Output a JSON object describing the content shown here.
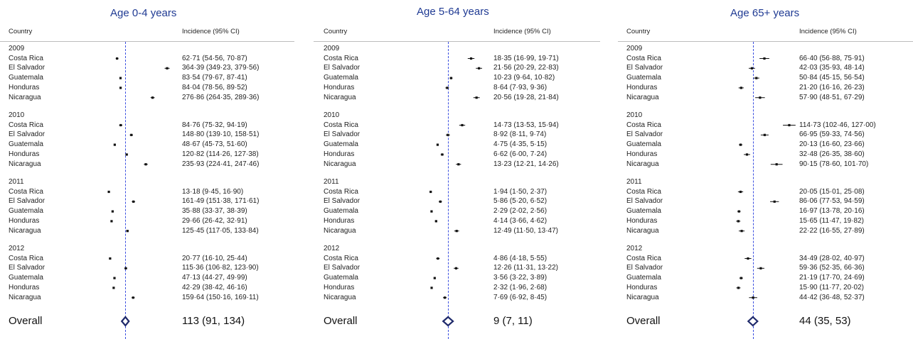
{
  "headers": {
    "country": "Country",
    "incidence": "Incidence (95% CI)"
  },
  "overall_label": "Overall",
  "colors": {
    "title": "#1f3a93",
    "reference_line": "#3b4fe0",
    "diamond": "#1f2a6b",
    "point": "#111111"
  },
  "chart_data": [
    {
      "type": "forest",
      "title": "Age 0-4 years",
      "xlim": [
        0,
        420
      ],
      "reference": 113,
      "groups": [
        {
          "year": "2009",
          "rows": [
            {
              "country": "Costa Rica",
              "est": 62.71,
              "lo": 54.56,
              "hi": 70.87,
              "label": "62·71 (54·56, 70·87)"
            },
            {
              "country": "El Salvador",
              "est": 364.39,
              "lo": 349.23,
              "hi": 379.56,
              "label": "364·39 (349·23, 379·56)"
            },
            {
              "country": "Guatemala",
              "est": 83.54,
              "lo": 79.67,
              "hi": 87.41,
              "label": "83·54 (79·67, 87·41)"
            },
            {
              "country": "Honduras",
              "est": 84.04,
              "lo": 78.56,
              "hi": 89.52,
              "label": "84·04 (78·56, 89·52)"
            },
            {
              "country": "Nicaragua",
              "est": 276.86,
              "lo": 264.35,
              "hi": 289.36,
              "label": "276·86 (264·35, 289·36)"
            }
          ]
        },
        {
          "year": "2010",
          "rows": [
            {
              "country": "Costa Rica",
              "est": 84.76,
              "lo": 75.32,
              "hi": 94.19,
              "label": "84·76 (75·32, 94·19)"
            },
            {
              "country": "El Salvador",
              "est": 148.8,
              "lo": 139.1,
              "hi": 158.51,
              "label": "148·80 (139·10, 158·51)"
            },
            {
              "country": "Guatemala",
              "est": 48.67,
              "lo": 45.73,
              "hi": 51.6,
              "label": "48·67 (45·73, 51·60)"
            },
            {
              "country": "Honduras",
              "est": 120.82,
              "lo": 114.26,
              "hi": 127.38,
              "label": "120·82 (114·26, 127·38)"
            },
            {
              "country": "Nicaragua",
              "est": 235.93,
              "lo": 224.41,
              "hi": 247.46,
              "label": "235·93 (224·41, 247·46)"
            }
          ]
        },
        {
          "year": "2011",
          "rows": [
            {
              "country": "Costa Rica",
              "est": 13.18,
              "lo": 9.45,
              "hi": 16.9,
              "label": "13·18 (9·45, 16·90)"
            },
            {
              "country": "El Salvador",
              "est": 161.49,
              "lo": 151.38,
              "hi": 171.61,
              "label": "161·49 (151·38, 171·61)"
            },
            {
              "country": "Guatemala",
              "est": 35.88,
              "lo": 33.37,
              "hi": 38.39,
              "label": "35·88 (33·37, 38·39)"
            },
            {
              "country": "Honduras",
              "est": 29.66,
              "lo": 26.42,
              "hi": 32.91,
              "label": "29·66 (26·42, 32·91)"
            },
            {
              "country": "Nicaragua",
              "est": 125.45,
              "lo": 117.05,
              "hi": 133.84,
              "label": "125·45 (117·05, 133·84)"
            }
          ]
        },
        {
          "year": "2012",
          "rows": [
            {
              "country": "Costa Rica",
              "est": 20.77,
              "lo": 16.1,
              "hi": 25.44,
              "label": "20·77 (16·10, 25·44)"
            },
            {
              "country": "El Salvador",
              "est": 115.36,
              "lo": 106.82,
              "hi": 123.9,
              "label": "115·36 (106·82, 123·90)"
            },
            {
              "country": "Guatemala",
              "est": 47.13,
              "lo": 44.27,
              "hi": 49.99,
              "label": "47·13 (44·27, 49·99)"
            },
            {
              "country": "Honduras",
              "est": 42.29,
              "lo": 38.42,
              "hi": 46.16,
              "label": "42·29 (38·42, 46·16)"
            },
            {
              "country": "Nicaragua",
              "est": 159.64,
              "lo": 150.16,
              "hi": 169.11,
              "label": "159·64 (150·16, 169·11)"
            }
          ]
        }
      ],
      "overall": {
        "est": 113,
        "lo": 91,
        "hi": 134,
        "label": "113 (91, 134)"
      }
    },
    {
      "type": "forest",
      "title": "Age 5-64 years",
      "xlim": [
        0,
        26
      ],
      "reference": 9,
      "groups": [
        {
          "year": "2009",
          "rows": [
            {
              "country": "Costa Rica",
              "est": 18.35,
              "lo": 16.99,
              "hi": 19.71,
              "label": "18·35 (16·99, 19·71)"
            },
            {
              "country": "El Salvador",
              "est": 21.56,
              "lo": 20.29,
              "hi": 22.83,
              "label": "21·56 (20·29, 22·83)"
            },
            {
              "country": "Guatemala",
              "est": 10.23,
              "lo": 9.64,
              "hi": 10.82,
              "label": "10·23 (9·64, 10·82)"
            },
            {
              "country": "Honduras",
              "est": 8.64,
              "lo": 7.93,
              "hi": 9.36,
              "label": "8·64 (7·93, 9·36)"
            },
            {
              "country": "Nicaragua",
              "est": 20.56,
              "lo": 19.28,
              "hi": 21.84,
              "label": "20·56 (19·28, 21·84)"
            }
          ]
        },
        {
          "year": "2010",
          "rows": [
            {
              "country": "Costa Rica",
              "est": 14.73,
              "lo": 13.53,
              "hi": 15.94,
              "label": "14·73 (13·53, 15·94)"
            },
            {
              "country": "El Salvador",
              "est": 8.92,
              "lo": 8.11,
              "hi": 9.74,
              "label": "8·92 (8·11, 9·74)"
            },
            {
              "country": "Guatemala",
              "est": 4.75,
              "lo": 4.35,
              "hi": 5.15,
              "label": "4·75 (4·35, 5·15)"
            },
            {
              "country": "Honduras",
              "est": 6.62,
              "lo": 6.0,
              "hi": 7.24,
              "label": "6·62 (6·00, 7·24)"
            },
            {
              "country": "Nicaragua",
              "est": 13.23,
              "lo": 12.21,
              "hi": 14.26,
              "label": "13·23 (12·21, 14·26)"
            }
          ]
        },
        {
          "year": "2011",
          "rows": [
            {
              "country": "Costa Rica",
              "est": 1.94,
              "lo": 1.5,
              "hi": 2.37,
              "label": "1·94 (1·50, 2·37)"
            },
            {
              "country": "El Salvador",
              "est": 5.86,
              "lo": 5.2,
              "hi": 6.52,
              "label": "5·86 (5·20, 6·52)"
            },
            {
              "country": "Guatemala",
              "est": 2.29,
              "lo": 2.02,
              "hi": 2.56,
              "label": "2·29 (2·02, 2·56)"
            },
            {
              "country": "Honduras",
              "est": 4.14,
              "lo": 3.66,
              "hi": 4.62,
              "label": "4·14 (3·66, 4·62)"
            },
            {
              "country": "Nicaragua",
              "est": 12.49,
              "lo": 11.5,
              "hi": 13.47,
              "label": "12·49 (11·50, 13·47)"
            }
          ]
        },
        {
          "year": "2012",
          "rows": [
            {
              "country": "Costa Rica",
              "est": 4.86,
              "lo": 4.18,
              "hi": 5.55,
              "label": "4·86 (4·18, 5·55)"
            },
            {
              "country": "El Salvador",
              "est": 12.26,
              "lo": 11.31,
              "hi": 13.22,
              "label": "12·26 (11·31, 13·22)"
            },
            {
              "country": "Guatemala",
              "est": 3.56,
              "lo": 3.22,
              "hi": 3.89,
              "label": "3·56 (3·22, 3·89)"
            },
            {
              "country": "Honduras",
              "est": 2.32,
              "lo": 1.96,
              "hi": 2.68,
              "label": "2·32 (1·96, 2·68)"
            },
            {
              "country": "Nicaragua",
              "est": 7.69,
              "lo": 6.92,
              "hi": 8.45,
              "label": "7·69 (6·92, 8·45)"
            }
          ]
        }
      ],
      "overall": {
        "est": 9,
        "lo": 7,
        "hi": 11,
        "label": "9 (7, 11)"
      }
    },
    {
      "type": "forest",
      "title": "Age 65+ years",
      "xlim": [
        0,
        130
      ],
      "reference": 44,
      "groups": [
        {
          "year": "2009",
          "rows": [
            {
              "country": "Costa Rica",
              "est": 66.4,
              "lo": 56.88,
              "hi": 75.91,
              "label": "66·40 (56·88, 75·91)"
            },
            {
              "country": "El Salvador",
              "est": 42.03,
              "lo": 35.93,
              "hi": 48.14,
              "label": "42·03 (35·93, 48·14)"
            },
            {
              "country": "Guatemala",
              "est": 50.84,
              "lo": 45.15,
              "hi": 56.54,
              "label": "50·84 (45·15, 56·54)"
            },
            {
              "country": "Honduras",
              "est": 21.2,
              "lo": 16.16,
              "hi": 26.23,
              "label": "21·20 (16·16, 26·23)"
            },
            {
              "country": "Nicaragua",
              "est": 57.9,
              "lo": 48.51,
              "hi": 67.29,
              "label": "57·90 (48·51, 67·29)"
            }
          ]
        },
        {
          "year": "2010",
          "rows": [
            {
              "country": "Costa Rica",
              "est": 114.73,
              "lo": 102.46,
              "hi": 127.0,
              "label": "114·73 (102·46, 127·00)"
            },
            {
              "country": "El Salvador",
              "est": 66.95,
              "lo": 59.33,
              "hi": 74.56,
              "label": "66·95 (59·33, 74·56)"
            },
            {
              "country": "Guatemala",
              "est": 20.13,
              "lo": 16.6,
              "hi": 23.66,
              "label": "20·13 (16·60, 23·66)"
            },
            {
              "country": "Honduras",
              "est": 32.48,
              "lo": 26.35,
              "hi": 38.6,
              "label": "32·48 (26·35, 38·60)"
            },
            {
              "country": "Nicaragua",
              "est": 90.15,
              "lo": 78.6,
              "hi": 101.7,
              "label": "90·15 (78·60, 101·70)"
            }
          ]
        },
        {
          "year": "2011",
          "rows": [
            {
              "country": "Costa Rica",
              "est": 20.05,
              "lo": 15.01,
              "hi": 25.08,
              "label": "20·05 (15·01, 25·08)"
            },
            {
              "country": "El Salvador",
              "est": 86.06,
              "lo": 77.53,
              "hi": 94.59,
              "label": "86·06 (77·53, 94·59)"
            },
            {
              "country": "Guatemala",
              "est": 16.97,
              "lo": 13.78,
              "hi": 20.16,
              "label": "16·97 (13·78, 20·16)"
            },
            {
              "country": "Honduras",
              "est": 15.65,
              "lo": 11.47,
              "hi": 19.82,
              "label": "15·65 (11·47, 19·82)"
            },
            {
              "country": "Nicaragua",
              "est": 22.22,
              "lo": 16.55,
              "hi": 27.89,
              "label": "22·22 (16·55, 27·89)"
            }
          ]
        },
        {
          "year": "2012",
          "rows": [
            {
              "country": "Costa Rica",
              "est": 34.49,
              "lo": 28.02,
              "hi": 40.97,
              "label": "34·49 (28·02, 40·97)"
            },
            {
              "country": "El Salvador",
              "est": 59.36,
              "lo": 52.35,
              "hi": 66.36,
              "label": "59·36 (52·35, 66·36)"
            },
            {
              "country": "Guatemala",
              "est": 21.19,
              "lo": 17.7,
              "hi": 24.69,
              "label": "21·19 (17·70, 24·69)"
            },
            {
              "country": "Honduras",
              "est": 15.9,
              "lo": 11.77,
              "hi": 20.02,
              "label": "15·90 (11·77, 20·02)"
            },
            {
              "country": "Nicaragua",
              "est": 44.42,
              "lo": 36.48,
              "hi": 52.37,
              "label": "44·42 (36·48, 52·37)"
            }
          ]
        }
      ],
      "overall": {
        "est": 44,
        "lo": 35,
        "hi": 53,
        "label": "44 (35, 53)"
      }
    }
  ]
}
